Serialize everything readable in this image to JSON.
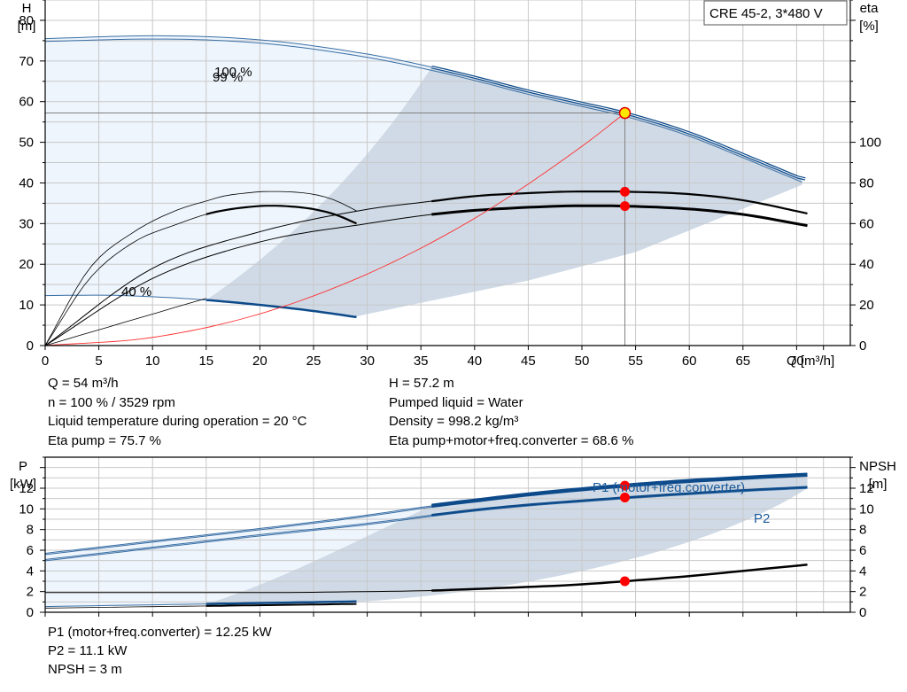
{
  "top_chart": {
    "title_box": "CRE 45-2, 3*480 V",
    "y_left_label": [
      "H",
      "[m]"
    ],
    "y_right_label": [
      "eta",
      "[%]"
    ],
    "x_label": "Q [m³/h]",
    "speed_labels": [
      "100 %",
      "99 %",
      "40 %"
    ],
    "operating_point": {
      "q": 54,
      "h": 57.2
    }
  },
  "bottom_chart": {
    "y_left_label": [
      "P",
      "[kW]"
    ],
    "y_right_label": [
      "NPSH",
      "[m]"
    ],
    "p1_label": "P1 (motor+freq.converter)",
    "p2_label": "P2"
  },
  "info": {
    "q": "Q = 54 m³/h",
    "n": "n = 100 % / 3529 rpm",
    "temp": "Liquid temperature during operation = 20 °C",
    "eta_pump": "Eta pump = 75.7 %",
    "h": "H = 57.2 m",
    "liquid": "Pumped liquid = Water",
    "density": "Density = 998.2 kg/m³",
    "eta_total": "Eta pump+motor+freq.converter = 68.6 %"
  },
  "info2": {
    "p1": "P1 (motor+freq.converter) = 12.25 kW",
    "p2": "P2 = 11.1 kW",
    "npsh": "NPSH = 3 m"
  },
  "chart_data": [
    {
      "type": "line",
      "title": "CRE 45-2, 3*480 V",
      "xlabel": "Q [m³/h]",
      "ylabel": "H [m]",
      "y2label": "eta [%]",
      "xlim": [
        0,
        75
      ],
      "ylim": [
        0,
        85
      ],
      "y2lim": [
        0,
        170
      ],
      "x_ticks": [
        0,
        5,
        10,
        15,
        20,
        25,
        30,
        35,
        40,
        45,
        50,
        55,
        60,
        65,
        70
      ],
      "y_ticks": [
        0,
        10,
        20,
        30,
        40,
        50,
        60,
        70,
        80
      ],
      "y2_ticks": [
        0,
        20,
        40,
        60,
        80,
        100
      ],
      "grid": true,
      "series": [
        {
          "name": "100 %",
          "axis": "H",
          "x": [
            0,
            10,
            20,
            30,
            36,
            40,
            45,
            50,
            54,
            60,
            65,
            70.5
          ],
          "y": [
            75.5,
            76.2,
            75.2,
            71.7,
            68.5,
            66.0,
            62.6,
            59.6,
            57.2,
            52.3,
            47.0,
            41.0
          ]
        },
        {
          "name": "99 %",
          "axis": "H",
          "x": [
            0,
            10,
            20,
            30,
            36,
            40,
            45,
            50,
            54,
            60,
            65,
            70.5
          ],
          "y": [
            74.8,
            75.4,
            74.4,
            70.9,
            67.7,
            65.2,
            61.8,
            58.8,
            56.4,
            51.5,
            46.2,
            40.2
          ]
        },
        {
          "name": "40 %",
          "axis": "H",
          "x": [
            0,
            5,
            10,
            15,
            20,
            25,
            29
          ],
          "y": [
            12.3,
            12.4,
            12.0,
            11.2,
            10.0,
            8.5,
            7.0
          ]
        },
        {
          "name": "Eta pump",
          "axis": "eta",
          "x": [
            0,
            10,
            20,
            30,
            36,
            40,
            45,
            50,
            54,
            60,
            65,
            71
          ],
          "y": [
            0,
            38,
            56,
            67,
            71,
            73.5,
            75,
            75.8,
            75.7,
            74.5,
            71.5,
            65
          ]
        },
        {
          "name": "Eta pump+motor+freq.converter",
          "axis": "eta",
          "x": [
            0,
            10,
            20,
            30,
            36,
            40,
            45,
            50,
            54,
            60,
            65,
            71
          ],
          "y": [
            0,
            33,
            51,
            60,
            64.5,
            66.5,
            68,
            68.8,
            68.6,
            67.2,
            64.5,
            59
          ]
        },
        {
          "name": "System curve",
          "axis": "H",
          "x": [
            0,
            10,
            20,
            30,
            40,
            50,
            54
          ],
          "y": [
            0,
            2.0,
            7.8,
            17.6,
            31.3,
            49.0,
            57.2
          ]
        }
      ],
      "operating_point": {
        "q": 54,
        "h": 57.2,
        "eta_pump": 75.7,
        "eta_total": 68.6
      }
    },
    {
      "type": "line",
      "ylabel": "P [kW]",
      "y2label": "NPSH [m]",
      "xlim": [
        0,
        75
      ],
      "ylim": [
        0,
        15
      ],
      "x_ticks": [
        0,
        5,
        10,
        15,
        20,
        25,
        30,
        35,
        40,
        45,
        50,
        55,
        60,
        65,
        70
      ],
      "y_ticks": [
        0,
        2,
        4,
        6,
        8,
        10,
        12
      ],
      "y2_ticks": [
        0,
        2,
        4,
        6,
        8,
        10,
        12
      ],
      "grid": true,
      "series": [
        {
          "name": "P1 (motor+freq.converter)",
          "axis": "P",
          "x": [
            0,
            10,
            20,
            30,
            36,
            40,
            45,
            50,
            54,
            60,
            65,
            71
          ],
          "y": [
            5.7,
            6.9,
            8.1,
            9.4,
            10.3,
            10.8,
            11.4,
            11.9,
            12.25,
            12.7,
            13.0,
            13.3
          ]
        },
        {
          "name": "P2",
          "axis": "P",
          "x": [
            0,
            10,
            20,
            30,
            36,
            40,
            45,
            50,
            54,
            60,
            65,
            71
          ],
          "y": [
            5.1,
            6.3,
            7.5,
            8.6,
            9.4,
            9.9,
            10.4,
            10.8,
            11.1,
            11.5,
            11.8,
            12.1
          ]
        },
        {
          "name": "NPSH",
          "axis": "NPSH",
          "x": [
            0,
            10,
            20,
            30,
            36,
            40,
            45,
            50,
            54,
            60,
            65,
            71
          ],
          "y": [
            1.9,
            1.9,
            1.9,
            2.0,
            2.1,
            2.25,
            2.45,
            2.7,
            3.0,
            3.5,
            4.0,
            4.6
          ]
        }
      ],
      "operating_point": {
        "q": 54,
        "p1": 12.25,
        "p2": 11.1,
        "npsh": 3
      }
    }
  ]
}
